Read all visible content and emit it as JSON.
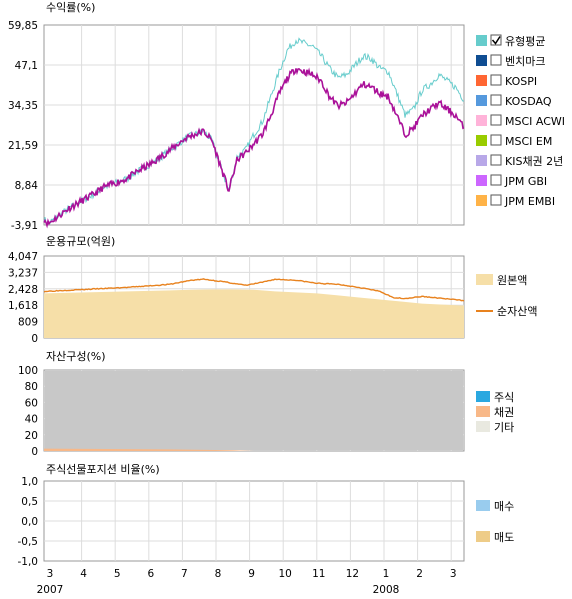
{
  "chart_data": [
    {
      "type": "line",
      "title": "수익률(%)",
      "y_ticks": [
        "59,85",
        "47,1",
        "34,35",
        "21,59",
        "8,84",
        "-3,91"
      ],
      "ylim": [
        -3.91,
        59.85
      ],
      "grid": true,
      "legend_position": "right",
      "series": [
        {
          "name": "유형평균",
          "color": "#66cccc",
          "checked": true,
          "x": [
            0,
            0.01,
            0.02,
            0.04,
            0.06,
            0.08,
            0.1,
            0.12,
            0.14,
            0.16,
            0.18,
            0.2,
            0.22,
            0.24,
            0.26,
            0.28,
            0.3,
            0.32,
            0.34,
            0.36,
            0.38,
            0.4,
            0.42,
            0.44,
            0.46,
            0.48,
            0.5,
            0.52,
            0.54,
            0.56,
            0.58,
            0.6,
            0.62,
            0.64,
            0.66,
            0.68,
            0.7,
            0.72,
            0.74,
            0.76,
            0.78,
            0.8,
            0.82,
            0.84,
            0.86,
            0.88,
            0.9,
            0.92,
            0.94,
            0.96,
            0.98,
            1
          ],
          "values": [
            -2,
            -3.5,
            -2.5,
            -0.5,
            1.5,
            3,
            4.5,
            6,
            8,
            9,
            10,
            11,
            13,
            14.5,
            16,
            18,
            20,
            22,
            24,
            25,
            26,
            23,
            15,
            7,
            18,
            20,
            25,
            29,
            37,
            45,
            52,
            55,
            54,
            53,
            50,
            46,
            43,
            44,
            47,
            50,
            49,
            46,
            45,
            38,
            31,
            33,
            39,
            41,
            44,
            42,
            40,
            36
          ]
        },
        {
          "name": "벤치마크",
          "color": "#0f4d92",
          "checked": false
        },
        {
          "name": "KOSPI",
          "color": "#ff6633",
          "checked": false
        },
        {
          "name": "KOSDAQ",
          "color": "#5599dd",
          "checked": false
        },
        {
          "name": "MSCI ACWI",
          "color": "#ffb3d9",
          "checked": false
        },
        {
          "name": "MSCI EM",
          "color": "#99cc00",
          "checked": false
        },
        {
          "name": "KIS채권 2년",
          "color": "#b8a8e8",
          "checked": false
        },
        {
          "name": "JPM GBI",
          "color": "#cc66ff",
          "checked": false
        },
        {
          "name": "JPM EMBI",
          "color": "#ffb347",
          "checked": false
        },
        {
          "name": "fund",
          "color": "#aa1199",
          "legend": false,
          "x": [
            0,
            0.01,
            0.02,
            0.04,
            0.06,
            0.08,
            0.1,
            0.12,
            0.14,
            0.16,
            0.18,
            0.2,
            0.22,
            0.24,
            0.26,
            0.28,
            0.3,
            0.32,
            0.34,
            0.36,
            0.38,
            0.4,
            0.42,
            0.44,
            0.46,
            0.48,
            0.5,
            0.52,
            0.54,
            0.56,
            0.58,
            0.6,
            0.62,
            0.64,
            0.66,
            0.68,
            0.7,
            0.72,
            0.74,
            0.76,
            0.78,
            0.8,
            0.82,
            0.84,
            0.86,
            0.88,
            0.9,
            0.92,
            0.94,
            0.96,
            0.98,
            1
          ],
          "values": [
            -2,
            -3.5,
            -2.5,
            -0.5,
            1.5,
            3,
            4.5,
            6,
            8,
            9,
            10,
            11,
            13,
            14.5,
            16,
            18,
            20,
            22,
            24,
            25,
            26,
            23,
            15,
            7,
            17,
            19,
            22,
            25,
            31,
            38,
            43,
            46,
            45,
            44,
            42,
            37,
            34,
            35,
            38,
            41,
            40,
            38,
            37,
            31,
            25,
            27,
            31,
            33,
            35,
            33,
            31,
            27
          ]
        }
      ]
    },
    {
      "type": "area",
      "title": "운용규모(억원)",
      "y_ticks": [
        "4,047",
        "3,237",
        "2,428",
        "1,618",
        "809",
        "0"
      ],
      "ylim": [
        0,
        4047
      ],
      "legend_position": "right",
      "series": [
        {
          "name": "원본액",
          "color": "#f6dfa8",
          "x": [
            0,
            0.1,
            0.2,
            0.3,
            0.35,
            0.4,
            0.45,
            0.5,
            0.55,
            0.6,
            0.65,
            0.7,
            0.75,
            0.8,
            0.85,
            0.9,
            0.95,
            1
          ],
          "values": [
            2200,
            2250,
            2300,
            2350,
            2380,
            2400,
            2400,
            2380,
            2300,
            2250,
            2200,
            2100,
            2000,
            1900,
            1800,
            1700,
            1650,
            1600
          ]
        },
        {
          "name": "순자산액",
          "color": "#e8821e",
          "x": [
            0,
            0.1,
            0.2,
            0.3,
            0.35,
            0.38,
            0.42,
            0.45,
            0.48,
            0.52,
            0.55,
            0.6,
            0.65,
            0.7,
            0.75,
            0.8,
            0.83,
            0.86,
            0.9,
            0.95,
            1
          ],
          "values": [
            2300,
            2400,
            2500,
            2650,
            2850,
            2900,
            2800,
            2700,
            2600,
            2750,
            2900,
            2850,
            2700,
            2650,
            2500,
            2300,
            2000,
            1950,
            2050,
            1950,
            1850
          ]
        }
      ]
    },
    {
      "type": "area",
      "title": "자산구성(%)",
      "y_ticks": [
        "100",
        "80",
        "60",
        "40",
        "20",
        "0"
      ],
      "ylim": [
        0,
        100
      ],
      "legend_position": "right",
      "series": [
        {
          "name": "주식",
          "color": "#2aa8e0",
          "values": [
            0
          ]
        },
        {
          "name": "채권",
          "color": "#f8b888",
          "x": [
            0,
            0.3,
            0.45,
            0.5,
            1
          ],
          "values": [
            3,
            2,
            1,
            0,
            0
          ]
        },
        {
          "name": "기타",
          "color": "#e9e9e0",
          "values": [
            97
          ]
        }
      ]
    },
    {
      "type": "bar",
      "title": "주식선물포지션 비율(%)",
      "y_ticks": [
        "1,0",
        "0,5",
        "0,0",
        "-0,5",
        "-1,0"
      ],
      "ylim": [
        -1.0,
        1.0
      ],
      "legend_position": "right",
      "series": [
        {
          "name": "매수",
          "color": "#99ccee",
          "values": []
        },
        {
          "name": "매도",
          "color": "#eecc88",
          "values": []
        }
      ]
    }
  ],
  "x_axis": {
    "month_labels": [
      "3",
      "4",
      "5",
      "6",
      "7",
      "8",
      "9",
      "10",
      "11",
      "12",
      "1",
      "2",
      "3"
    ],
    "year_labels": [
      {
        "text": "2007",
        "at_month": 0
      },
      {
        "text": "2008",
        "at_month": 10
      }
    ]
  }
}
